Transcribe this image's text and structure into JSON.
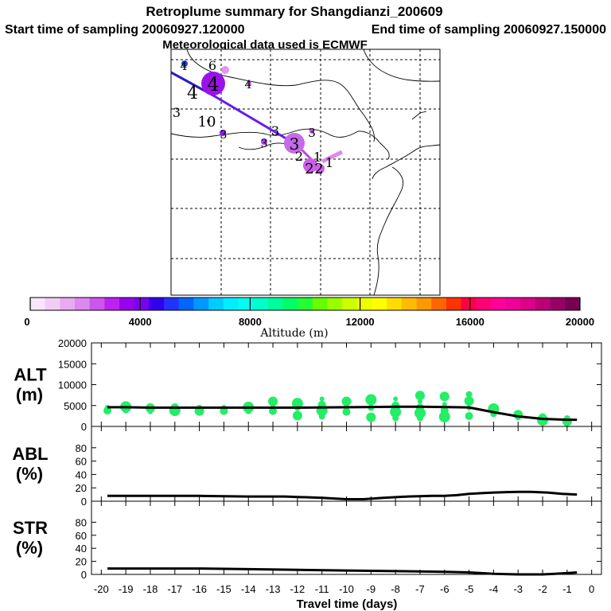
{
  "header": {
    "title": "Retroplume summary for Shangdianzi_200609",
    "start": "Start time of sampling 20060927.120000",
    "end": "End time of sampling 20060927.150000",
    "met": "Meteorological data used is ECMWF"
  },
  "colorbar": {
    "label": "Altitude (m)",
    "ticks": [
      "0",
      "4000",
      "8000",
      "12000",
      "16000",
      "20000"
    ],
    "colors": [
      "#f9e6fb",
      "#f2ccf7",
      "#e8aaf2",
      "#dd88ee",
      "#cc55ee",
      "#bb22ee",
      "#9900ee",
      "#7a00ee",
      "#3300ee",
      "#2233ff",
      "#0066ff",
      "#0099ff",
      "#00ccff",
      "#00eeff",
      "#00ffee",
      "#00ffcc",
      "#00ff99",
      "#00ff66",
      "#22ff33",
      "#66ff00",
      "#99ff00",
      "#ccff00",
      "#eeff00",
      "#ffff00",
      "#ffdd00",
      "#ffbb00",
      "#ff9900",
      "#ff6600",
      "#ff3300",
      "#ff0044",
      "#ff0077",
      "#ff0099",
      "#ee0099",
      "#dd0088",
      "#bb0077",
      "#990066",
      "#770055"
    ]
  },
  "map": {
    "markers": [
      {
        "t": "4",
        "size": 14
      },
      {
        "t": "6",
        "size": 16
      },
      {
        "t": "4",
        "size": 14
      },
      {
        "t": "4",
        "size": 22
      },
      {
        "t": "4",
        "size": 24
      },
      {
        "t": "3",
        "size": 16
      },
      {
        "t": "10",
        "size": 18
      },
      {
        "t": "3",
        "size": 14
      },
      {
        "t": "3",
        "size": 14
      },
      {
        "t": "3",
        "size": 16
      },
      {
        "t": "3",
        "size": 15
      },
      {
        "t": "3",
        "size": 20
      },
      {
        "t": "2",
        "size": 18
      },
      {
        "t": "1",
        "size": 16
      },
      {
        "t": "2",
        "size": 16
      },
      {
        "t": "2",
        "size": 18
      },
      {
        "t": "1",
        "size": 16
      }
    ]
  },
  "chart_data": [
    {
      "type": "line",
      "panel": "ALT",
      "ylabel": [
        "ALT",
        "(m)"
      ],
      "ylim": [
        0,
        20000
      ],
      "yticks": [
        "0",
        "5000",
        "10000",
        "15000",
        "20000"
      ],
      "x": [
        -19.75,
        -19,
        -18,
        -17,
        -16,
        -15,
        -14,
        -13,
        -12,
        -11,
        -10,
        -9,
        -8,
        -7,
        -6,
        -5,
        -4,
        -3,
        -2,
        -1,
        -0.6
      ],
      "values": [
        4600,
        4600,
        4500,
        4500,
        4500,
        4500,
        4500,
        4500,
        4500,
        4550,
        4600,
        4650,
        4700,
        4700,
        4650,
        4550,
        3400,
        2400,
        1800,
        1600,
        1600
      ],
      "scatter": [
        [
          -19.75,
          4600
        ],
        [
          -19.75,
          3800
        ],
        [
          -19,
          4700
        ],
        [
          -19,
          3900
        ],
        [
          -18,
          4400
        ],
        [
          -18,
          3500
        ],
        [
          -17,
          4600
        ],
        [
          -17,
          3800
        ],
        [
          -16,
          4400
        ],
        [
          -16,
          3700
        ],
        [
          -15,
          4600
        ],
        [
          -15,
          3700
        ],
        [
          -14,
          4600
        ],
        [
          -14,
          3700
        ],
        [
          -13,
          6000
        ],
        [
          -13,
          4900
        ],
        [
          -13,
          3700
        ],
        [
          -12,
          5500
        ],
        [
          -12,
          4500
        ],
        [
          -12,
          2600
        ],
        [
          -11,
          6600
        ],
        [
          -11,
          5200
        ],
        [
          -11,
          3800
        ],
        [
          -11,
          2400
        ],
        [
          -10,
          6000
        ],
        [
          -10,
          4700
        ],
        [
          -10,
          3500
        ],
        [
          -9,
          6400
        ],
        [
          -9,
          4500
        ],
        [
          -9,
          2200
        ],
        [
          -8,
          6600
        ],
        [
          -8,
          5000
        ],
        [
          -8,
          3500
        ],
        [
          -8,
          2000
        ],
        [
          -7,
          7400
        ],
        [
          -7,
          6000
        ],
        [
          -7,
          4500
        ],
        [
          -7,
          3200
        ],
        [
          -7,
          2000
        ],
        [
          -6,
          7200
        ],
        [
          -6,
          5300
        ],
        [
          -6,
          3800
        ],
        [
          -6,
          2300
        ],
        [
          -5,
          7700
        ],
        [
          -5,
          6100
        ],
        [
          -5,
          4400
        ],
        [
          -5,
          2500
        ],
        [
          -4,
          4200
        ],
        [
          -4,
          3000
        ],
        [
          -3,
          2800
        ],
        [
          -3,
          2000
        ],
        [
          -2,
          2200
        ],
        [
          -2,
          1500
        ],
        [
          -1,
          1900
        ],
        [
          -1,
          1200
        ]
      ]
    },
    {
      "type": "line",
      "panel": "ABL",
      "ylabel": [
        "ABL",
        "(%)"
      ],
      "ylim": [
        0,
        100
      ],
      "yticks": [
        "0",
        "20",
        "40",
        "60",
        "80"
      ],
      "x": [
        -19.75,
        -18,
        -16,
        -14,
        -12.5,
        -11,
        -10,
        -9.3,
        -8.5,
        -7.5,
        -6.5,
        -6,
        -5.5,
        -5,
        -4.5,
        -4,
        -3,
        -2.5,
        -1.8,
        -1.2,
        -0.6
      ],
      "values": [
        8,
        8,
        8,
        7,
        7,
        5,
        3,
        3,
        5,
        7,
        8,
        8,
        9,
        11,
        12,
        13,
        14,
        14,
        13,
        11,
        10
      ]
    },
    {
      "type": "line",
      "panel": "STR",
      "ylabel": [
        "STR",
        "(%)"
      ],
      "ylim": [
        0,
        100
      ],
      "yticks": [
        "0",
        "20",
        "40",
        "60",
        "80"
      ],
      "x": [
        -19.75,
        -18,
        -16,
        -14,
        -12,
        -10,
        -8,
        -6,
        -5,
        -4.5,
        -4,
        -3,
        -2.5,
        -2,
        -1.5,
        -1,
        -0.6
      ],
      "values": [
        9,
        9,
        9,
        8,
        7,
        6,
        5,
        4,
        3,
        2,
        1,
        0,
        0,
        0,
        1,
        2,
        3
      ],
      "xlabel": "Travel time (days)",
      "xticks": [
        "-20",
        "-19",
        "-18",
        "-17",
        "-16",
        "-15",
        "-14",
        "-13",
        "-12",
        "-11",
        "-10",
        "-9",
        "-8",
        "-7",
        "-6",
        "-5",
        "-4",
        "-3",
        "-2",
        "-1",
        "0"
      ]
    }
  ]
}
